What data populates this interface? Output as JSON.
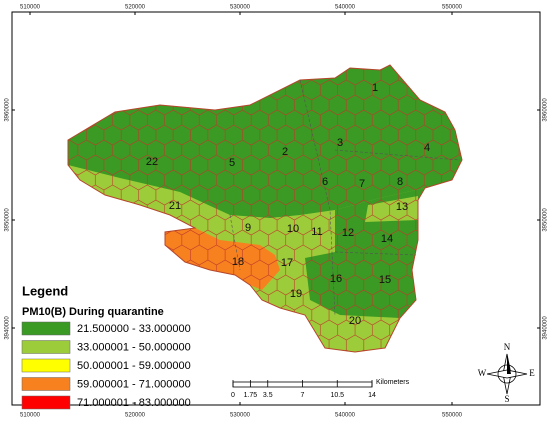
{
  "map": {
    "x_labels": [
      "510000",
      "520000",
      "530000",
      "540000",
      "550000"
    ],
    "y_labels": [
      "3960000",
      "3950000",
      "3940000"
    ],
    "districts": [
      "1",
      "2",
      "3",
      "4",
      "5",
      "6",
      "7",
      "8",
      "9",
      "10",
      "11",
      "12",
      "13",
      "14",
      "15",
      "16",
      "17",
      "18",
      "19",
      "20",
      "21",
      "22"
    ],
    "legend": {
      "title": "Legend",
      "subtitle": "PM10(B) During quarantine",
      "classes": [
        {
          "label": "21.500000 - 33.000000",
          "color": "#3a9a23"
        },
        {
          "label": "33.000001 - 50.000000",
          "color": "#9dcc3a"
        },
        {
          "label": "50.000001 - 59.000000",
          "color": "#ffff00"
        },
        {
          "label": "59.000001 - 71.000000",
          "color": "#f7811f"
        },
        {
          "label": "71.000001 - 83.000000",
          "color": "#ff0000"
        }
      ]
    },
    "scale_bar": {
      "ticks": [
        0,
        1.75,
        3.5,
        7,
        10.5,
        14
      ],
      "unit": "Kilometers"
    },
    "north_arrow": {
      "n": "N",
      "s": "S",
      "e": "E",
      "w": "W"
    }
  }
}
